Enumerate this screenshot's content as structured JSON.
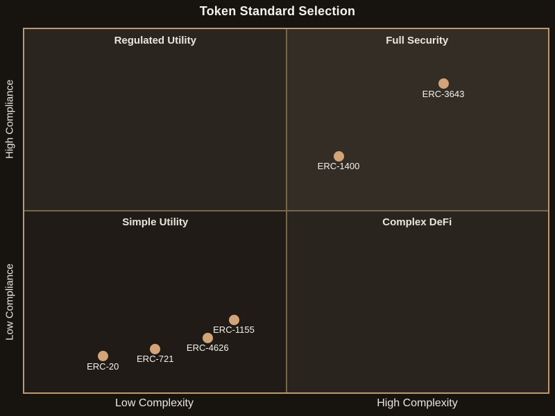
{
  "title": "Token Standard Selection",
  "axes": {
    "y_high": "High Compliance",
    "y_low": "Low Compliance",
    "x_low": "Low Complexity",
    "x_high": "High Complexity"
  },
  "quadrants": [
    {
      "position": "top-left",
      "label": "Regulated Utility"
    },
    {
      "position": "top-right",
      "label": "Full Security"
    },
    {
      "position": "bottom-left",
      "label": "Simple Utility"
    },
    {
      "position": "bottom-right",
      "label": "Complex DeFi"
    }
  ],
  "colors": {
    "background": "#17130f",
    "plot_border": "#bd9a72",
    "divider": "#76674a",
    "quadrant_top_left": "#2b2520",
    "quadrant_top_right": "#332d26",
    "quadrant_bottom_left": "#201b16",
    "quadrant_bottom_right": "#2a241e",
    "point_fill": "#d2a478",
    "text_primary": "#f4f1ea",
    "text_secondary": "#e9e5dc"
  },
  "chart_data": {
    "type": "scatter",
    "subtype": "quadrant",
    "title": "Token Standard Selection",
    "x_axis": {
      "low_label": "Low Complexity",
      "high_label": "High Complexity",
      "range": [
        0,
        1
      ]
    },
    "y_axis": {
      "low_label": "Low Compliance",
      "high_label": "High Compliance",
      "range": [
        0,
        1
      ]
    },
    "quadrant_labels": [
      "Regulated Utility",
      "Full Security",
      "Simple Utility",
      "Complex DeFi"
    ],
    "grid": false,
    "legend": false,
    "points": [
      {
        "label": "ERC-20",
        "x": 0.15,
        "y": 0.1
      },
      {
        "label": "ERC-721",
        "x": 0.25,
        "y": 0.12
      },
      {
        "label": "ERC-4626",
        "x": 0.35,
        "y": 0.15
      },
      {
        "label": "ERC-1155",
        "x": 0.4,
        "y": 0.2
      },
      {
        "label": "ERC-1400",
        "x": 0.6,
        "y": 0.65
      },
      {
        "label": "ERC-3643",
        "x": 0.8,
        "y": 0.85
      }
    ]
  }
}
